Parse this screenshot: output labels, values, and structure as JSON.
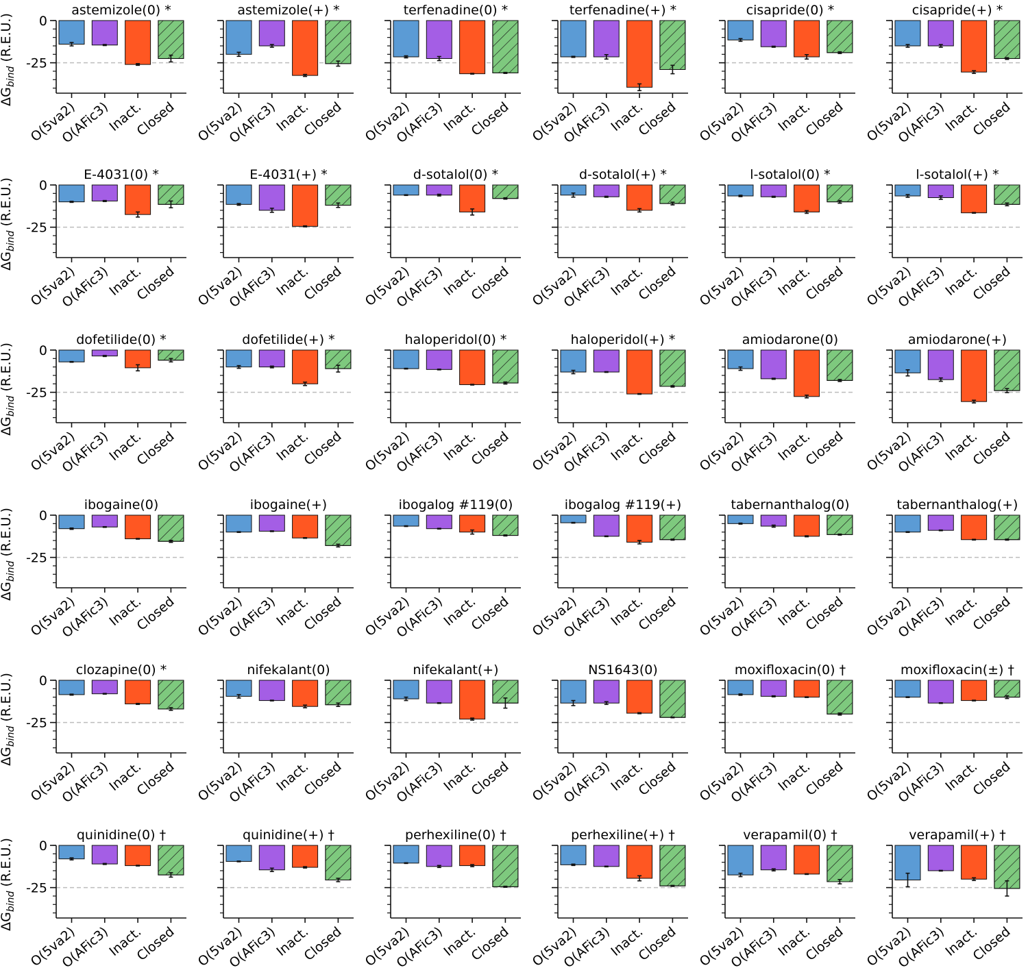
{
  "figure": {
    "ylabel_prefix": "ΔG",
    "ylabel_sub": "bind",
    "ylabel_suffix": " (R.E.U.)",
    "categories": [
      "O(5va2)",
      "O(AFic3)",
      "Inact.",
      "Closed"
    ],
    "colors": [
      "#5b9bd5",
      "#a45ee5",
      "#ff5722",
      "#7ec97e"
    ],
    "hatched_category": "Closed",
    "reference_line": -25,
    "ylim": [
      -43,
      0
    ],
    "yticks": [
      0,
      -25
    ]
  },
  "chart_data": [
    {
      "type": "bar",
      "title": "astemizole(0) *",
      "values": [
        -14,
        -14.5,
        -26,
        -22.5
      ],
      "errors": [
        1,
        0.3,
        0.5,
        2
      ]
    },
    {
      "type": "bar",
      "title": "astemizole(+) *",
      "values": [
        -20,
        -15,
        -32.5,
        -25.5
      ],
      "errors": [
        1.2,
        0.8,
        0.6,
        1.5
      ]
    },
    {
      "type": "bar",
      "title": "terfenadine(0) *",
      "values": [
        -21.5,
        -22.5,
        -31.5,
        -31
      ],
      "errors": [
        0.6,
        1.2,
        0.2,
        0.3
      ]
    },
    {
      "type": "bar",
      "title": "terfenadine(+) *",
      "values": [
        -21.5,
        -21.5,
        -39.5,
        -29
      ],
      "errors": [
        0.3,
        1.3,
        2,
        2.5
      ]
    },
    {
      "type": "bar",
      "title": "cisapride(0) *",
      "values": [
        -11.5,
        -15.5,
        -21.5,
        -19
      ],
      "errors": [
        0.8,
        0.3,
        1.3,
        0.5
      ]
    },
    {
      "type": "bar",
      "title": "cisapride(+) *",
      "values": [
        -15,
        -15,
        -30.5,
        -22.5
      ],
      "errors": [
        0.8,
        0.8,
        0.8,
        0.5
      ]
    },
    {
      "type": "bar",
      "title": "E-4031(0) *",
      "values": [
        -10,
        -9.5,
        -17.5,
        -11.5
      ],
      "errors": [
        0.3,
        0.3,
        1.5,
        2
      ]
    },
    {
      "type": "bar",
      "title": "E-4031(+) *",
      "values": [
        -11.5,
        -15,
        -24.5,
        -12
      ],
      "errors": [
        0.5,
        1.2,
        0.3,
        1.3
      ]
    },
    {
      "type": "bar",
      "title": "d-sotalol(0) *",
      "values": [
        -6,
        -6,
        -16,
        -8
      ],
      "errors": [
        0.2,
        0.5,
        1.8,
        0.4
      ]
    },
    {
      "type": "bar",
      "title": "d-sotalol(+) *",
      "values": [
        -6,
        -7,
        -15,
        -11
      ],
      "errors": [
        1.2,
        0.3,
        1,
        0.8
      ]
    },
    {
      "type": "bar",
      "title": "l-sotalol(0) *",
      "values": [
        -6.5,
        -7,
        -16,
        -10
      ],
      "errors": [
        0.4,
        0.3,
        0.8,
        0.8
      ]
    },
    {
      "type": "bar",
      "title": "l-sotalol(+) *",
      "values": [
        -6.5,
        -7.5,
        -16.5,
        -11.5
      ],
      "errors": [
        0.8,
        1,
        0.2,
        0.8
      ]
    },
    {
      "type": "bar",
      "title": "dofetilide(0) *",
      "values": [
        -7,
        -3.5,
        -10.5,
        -6
      ],
      "errors": [
        0.2,
        0.3,
        1.8,
        1
      ]
    },
    {
      "type": "bar",
      "title": "dofetilide(+) *",
      "values": [
        -10,
        -10,
        -20,
        -11
      ],
      "errors": [
        0.8,
        0.5,
        1,
        2
      ]
    },
    {
      "type": "bar",
      "title": "haloperidol(0) *",
      "values": [
        -11,
        -11.5,
        -20.5,
        -19.5
      ],
      "errors": [
        0.2,
        0.2,
        0.2,
        0.6
      ]
    },
    {
      "type": "bar",
      "title": "haloperidol(+) *",
      "values": [
        -13,
        -13,
        -26,
        -21.5
      ],
      "errors": [
        1,
        0.2,
        0.2,
        0.4
      ]
    },
    {
      "type": "bar",
      "title": "amiodarone(0)",
      "values": [
        -11,
        -17,
        -27.5,
        -18
      ],
      "errors": [
        1,
        0.3,
        0.8,
        0.6
      ]
    },
    {
      "type": "bar",
      "title": "amiodarone(+)",
      "values": [
        -13.5,
        -17.5,
        -30.5,
        -24
      ],
      "errors": [
        1.8,
        1,
        0.8,
        1.2
      ]
    },
    {
      "type": "bar",
      "title": "ibogaine(0)",
      "values": [
        -8,
        -7,
        -14,
        -15.5
      ],
      "errors": [
        0.4,
        0.2,
        0.2,
        0.6
      ]
    },
    {
      "type": "bar",
      "title": "ibogaine(+)",
      "values": [
        -10,
        -9.5,
        -13.5,
        -18
      ],
      "errors": [
        0.2,
        0.2,
        0.2,
        0.8
      ]
    },
    {
      "type": "bar",
      "title": "ibogalog #119(0)",
      "values": [
        -6.5,
        -8,
        -10,
        -12
      ],
      "errors": [
        0.2,
        0.2,
        1.2,
        0.3
      ]
    },
    {
      "type": "bar",
      "title": "ibogalog #119(+)",
      "values": [
        -4.5,
        -12.5,
        -16,
        -14.5
      ],
      "errors": [
        0.2,
        0.2,
        1,
        0.3
      ]
    },
    {
      "type": "bar",
      "title": "tabernanthalog(0)",
      "values": [
        -5,
        -6.5,
        -12.5,
        -11.5
      ],
      "errors": [
        0.3,
        0.6,
        0.3,
        0.3
      ]
    },
    {
      "type": "bar",
      "title": "tabernanthalog(+)",
      "values": [
        -10,
        -9,
        -14.5,
        -14.5
      ],
      "errors": [
        0.2,
        0.2,
        0.2,
        0.3
      ]
    },
    {
      "type": "bar",
      "title": "clozapine(0) *",
      "values": [
        -8.5,
        -8,
        -14,
        -17
      ],
      "errors": [
        0.3,
        0.2,
        0.3,
        0.8
      ]
    },
    {
      "type": "bar",
      "title": "nifekalant(0)",
      "values": [
        -9.5,
        -12,
        -15.5,
        -14.5
      ],
      "errors": [
        1,
        0.2,
        0.8,
        1
      ]
    },
    {
      "type": "bar",
      "title": "nifekalant(+)",
      "values": [
        -11,
        -13.5,
        -23,
        -13.5
      ],
      "errors": [
        1,
        0.2,
        0.6,
        3
      ]
    },
    {
      "type": "bar",
      "title": "NS1643(0)",
      "values": [
        -13.5,
        -13.5,
        -19.5,
        -22
      ],
      "errors": [
        1.5,
        0.8,
        0.3,
        0.2
      ]
    },
    {
      "type": "bar",
      "title": "moxifloxacin(0) †",
      "values": [
        -8.5,
        -9.5,
        -10,
        -20
      ],
      "errors": [
        0.4,
        0.3,
        0.2,
        0.6
      ]
    },
    {
      "type": "bar",
      "title": "moxifloxacin(±) †",
      "values": [
        -10,
        -13.5,
        -12,
        -10
      ],
      "errors": [
        0.2,
        0.2,
        0.2,
        0.8
      ]
    },
    {
      "type": "bar",
      "title": "quinidine(0) †",
      "values": [
        -8,
        -11,
        -12,
        -17.5
      ],
      "errors": [
        0.6,
        0.3,
        0.2,
        1.3
      ]
    },
    {
      "type": "bar",
      "title": "quinidine(+) †",
      "values": [
        -9.5,
        -14.5,
        -13,
        -20.5
      ],
      "errors": [
        0.2,
        1,
        0.4,
        1
      ]
    },
    {
      "type": "bar",
      "title": "perhexiline(0) †",
      "values": [
        -10.5,
        -12.5,
        -12,
        -24.5
      ],
      "errors": [
        0.2,
        0.6,
        0.6,
        0.3
      ]
    },
    {
      "type": "bar",
      "title": "perhexiline(+) †",
      "values": [
        -11.5,
        -12.5,
        -19.5,
        -24
      ],
      "errors": [
        0.4,
        0.2,
        1.5,
        0.3
      ]
    },
    {
      "type": "bar",
      "title": "verapamil(0) †",
      "values": [
        -17.5,
        -14.5,
        -17,
        -21.5
      ],
      "errors": [
        1,
        0.6,
        0.2,
        1.3
      ]
    },
    {
      "type": "bar",
      "title": "verapamil(+) †",
      "values": [
        -20.5,
        -15,
        -20,
        -25.5
      ],
      "errors": [
        4,
        0.2,
        0.8,
        4.5
      ]
    }
  ]
}
